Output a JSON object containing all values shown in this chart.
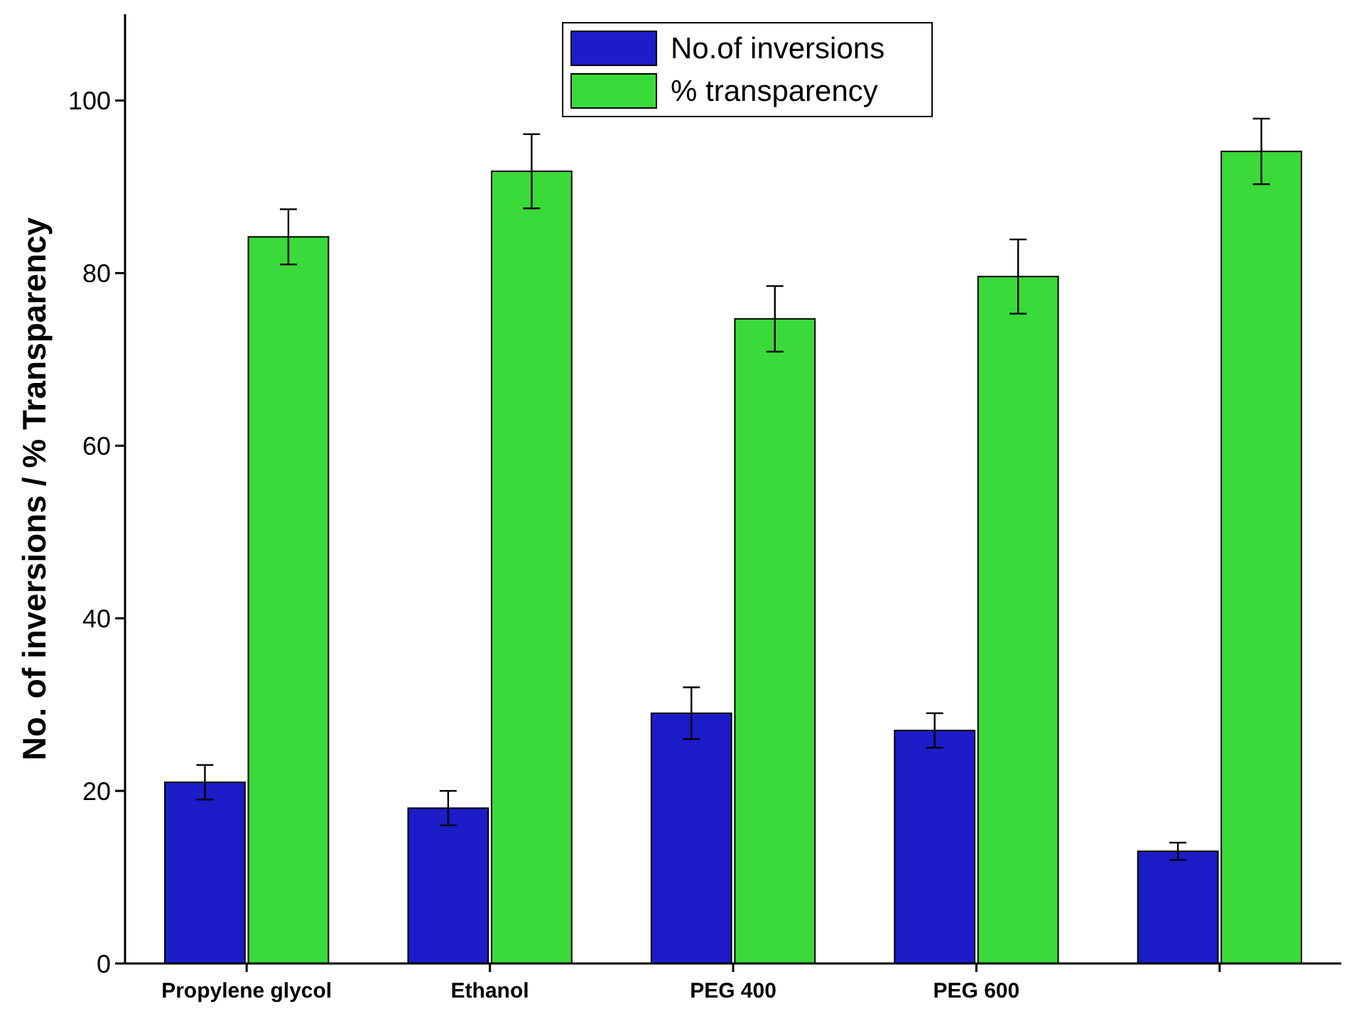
{
  "chart_data": {
    "type": "bar",
    "ylabel": "No. of inversions / % Transparency",
    "categories": [
      "Propylene glycol",
      "Ethanol",
      "PEG 400",
      "PEG 600",
      null
    ],
    "series": [
      {
        "name": "No.of inversions",
        "color": "#1c1cc8",
        "values": [
          21,
          18,
          29,
          27,
          13
        ],
        "errors": [
          2,
          2,
          3,
          2,
          1
        ]
      },
      {
        "name": "% transparency",
        "color": "#3ada3a",
        "values": [
          84.2,
          91.8,
          74.7,
          79.6,
          94.1
        ],
        "errors": [
          3.2,
          4.3,
          3.8,
          4.3,
          3.8
        ]
      }
    ],
    "ylim": [
      0,
      110
    ],
    "yticks": [
      0,
      20,
      40,
      60,
      80,
      100
    ],
    "grid": false,
    "legend": "top"
  }
}
